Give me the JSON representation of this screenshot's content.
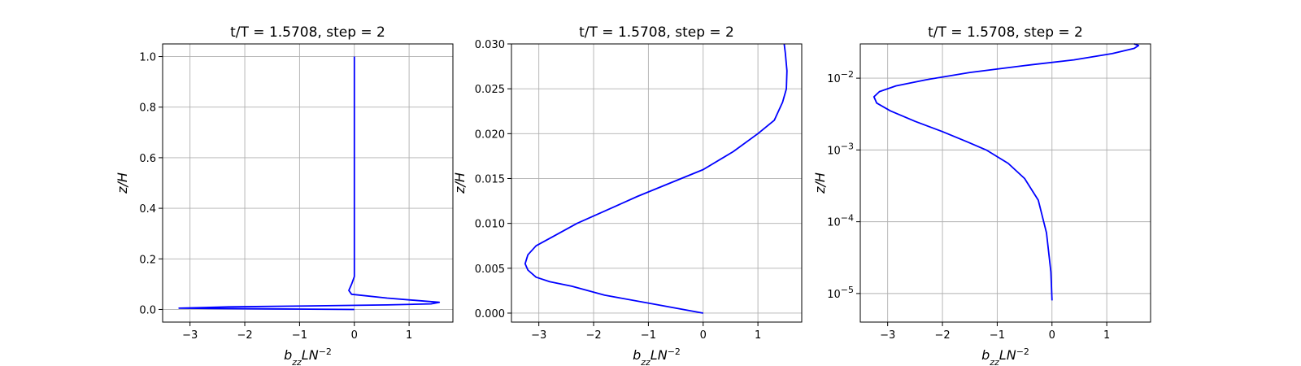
{
  "figure": {
    "colors": {
      "series": "#0000ff",
      "grid": "#b0b0b0",
      "axes": "#000000"
    }
  },
  "chart_data": [
    {
      "type": "line",
      "title": "t/T = 1.5708, step = 2",
      "xlabel": {
        "base": "b",
        "sub": "zz",
        "mid": "LN",
        "sup": "−2"
      },
      "ylabel": "z/H",
      "xlim": [
        -3.5,
        1.8
      ],
      "ylim": [
        -0.05,
        1.05
      ],
      "yscale": "linear",
      "grid": true,
      "xticks": [
        -3,
        -2,
        -1,
        0,
        1
      ],
      "xtick_labels": [
        "−3",
        "−2",
        "−1",
        "0",
        "1"
      ],
      "yticks": [
        0.0,
        0.2,
        0.4,
        0.6,
        0.8,
        1.0
      ],
      "ytick_labels": [
        "0.0",
        "0.2",
        "0.4",
        "0.6",
        "0.8",
        "1.0"
      ],
      "series": [
        {
          "x": [
            0,
            -1.5,
            -3.2,
            -2.3,
            -0.8,
            0.6,
            1.4,
            1.55,
            0.6,
            -0.05,
            -0.1,
            -0.05,
            0.0,
            0.0,
            0.0,
            0.0,
            0.0,
            0.0
          ],
          "y": [
            0.0,
            0.002,
            0.005,
            0.01,
            0.014,
            0.018,
            0.022,
            0.028,
            0.045,
            0.06,
            0.075,
            0.1,
            0.13,
            0.2,
            0.4,
            0.6,
            0.8,
            1.0
          ]
        }
      ]
    },
    {
      "type": "line",
      "title": "t/T = 1.5708, step = 2",
      "xlabel": {
        "base": "b",
        "sub": "zz",
        "mid": "LN",
        "sup": "−2"
      },
      "ylabel": "z/H",
      "xlim": [
        -3.5,
        1.8
      ],
      "ylim": [
        -0.001,
        0.03
      ],
      "yscale": "linear",
      "grid": true,
      "xticks": [
        -3,
        -2,
        -1,
        0,
        1
      ],
      "xtick_labels": [
        "−3",
        "−2",
        "−1",
        "0",
        "1"
      ],
      "yticks": [
        0.0,
        0.005,
        0.01,
        0.015,
        0.02,
        0.025,
        0.03
      ],
      "ytick_labels": [
        "0.000",
        "0.005",
        "0.010",
        "0.015",
        "0.020",
        "0.025",
        "0.030"
      ],
      "series": [
        {
          "x": [
            0,
            -0.9,
            -1.8,
            -2.4,
            -2.8,
            -3.05,
            -3.2,
            -3.25,
            -3.2,
            -3.05,
            -2.75,
            -2.3,
            -1.75,
            -1.2,
            -0.6,
            0.0,
            0.55,
            1.0,
            1.3,
            1.45,
            1.52,
            1.53,
            1.5,
            1.48
          ],
          "y": [
            0.0,
            0.001,
            0.002,
            0.003,
            0.0035,
            0.004,
            0.0048,
            0.0055,
            0.0065,
            0.0075,
            0.0085,
            0.01,
            0.0115,
            0.013,
            0.0145,
            0.016,
            0.018,
            0.02,
            0.0215,
            0.0235,
            0.025,
            0.027,
            0.029,
            0.03
          ]
        }
      ]
    },
    {
      "type": "line",
      "title": "t/T = 1.5708, step = 2",
      "xlabel": {
        "base": "b",
        "sub": "zz",
        "mid": "LN",
        "sup": "−2"
      },
      "ylabel": "z/H",
      "xlim": [
        -3.5,
        1.8
      ],
      "ylim": [
        4e-06,
        0.03
      ],
      "yscale": "log",
      "grid": true,
      "xticks": [
        -3,
        -2,
        -1,
        0,
        1
      ],
      "xtick_labels": [
        "−3",
        "−2",
        "−1",
        "0",
        "1"
      ],
      "yticks": [
        1e-05,
        0.0001,
        0.001,
        0.01
      ],
      "ytick_labels": [
        {
          "base": "10",
          "sup": "−5"
        },
        {
          "base": "10",
          "sup": "−4"
        },
        {
          "base": "10",
          "sup": "−3"
        },
        {
          "base": "10",
          "sup": "−2"
        }
      ],
      "series": [
        {
          "x": [
            0,
            -0.02,
            -0.1,
            -0.25,
            -0.5,
            -0.8,
            -1.2,
            -1.55,
            -2.0,
            -2.5,
            -2.95,
            -3.2,
            -3.25,
            -3.15,
            -2.85,
            -2.3,
            -1.5,
            -0.5,
            0.4,
            1.1,
            1.5,
            1.58,
            1.5
          ],
          "y": [
            8e-06,
            2e-05,
            7e-05,
            0.0002,
            0.0004,
            0.00065,
            0.001,
            0.0013,
            0.0018,
            0.0025,
            0.0035,
            0.0045,
            0.0055,
            0.0065,
            0.0078,
            0.0095,
            0.012,
            0.015,
            0.018,
            0.022,
            0.026,
            0.0285,
            0.03
          ]
        }
      ]
    }
  ]
}
